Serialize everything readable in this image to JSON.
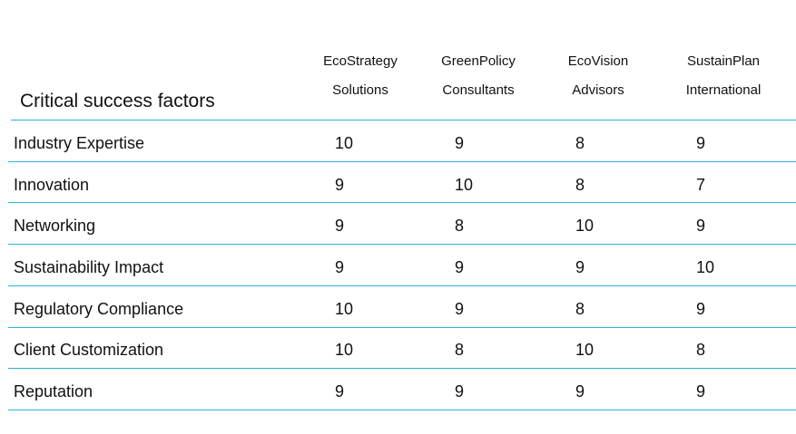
{
  "chart_data": {
    "type": "table",
    "title": "Critical success factors",
    "columns": [
      [
        "EcoStrategy",
        "Solutions"
      ],
      [
        "GreenPolicy",
        "Consultants"
      ],
      [
        "EcoVision",
        "Advisors"
      ],
      [
        "SustainPlan",
        "International"
      ]
    ],
    "rows": [
      {
        "label": "Industry Expertise",
        "values": [
          "10",
          "9",
          "8",
          "9"
        ]
      },
      {
        "label": "Innovation",
        "values": [
          "9",
          "10",
          "8",
          "7"
        ]
      },
      {
        "label": "Networking",
        "values": [
          "9",
          "8",
          "10",
          "9"
        ]
      },
      {
        "label": "Sustainability Impact",
        "values": [
          "9",
          "9",
          "9",
          "10"
        ]
      },
      {
        "label": "Regulatory Compliance",
        "values": [
          "10",
          "9",
          "8",
          "9"
        ]
      },
      {
        "label": "Client Customization",
        "values": [
          "10",
          "8",
          "10",
          "8"
        ]
      },
      {
        "label": "Reputation",
        "values": [
          "9",
          "9",
          "9",
          "9"
        ]
      }
    ]
  }
}
